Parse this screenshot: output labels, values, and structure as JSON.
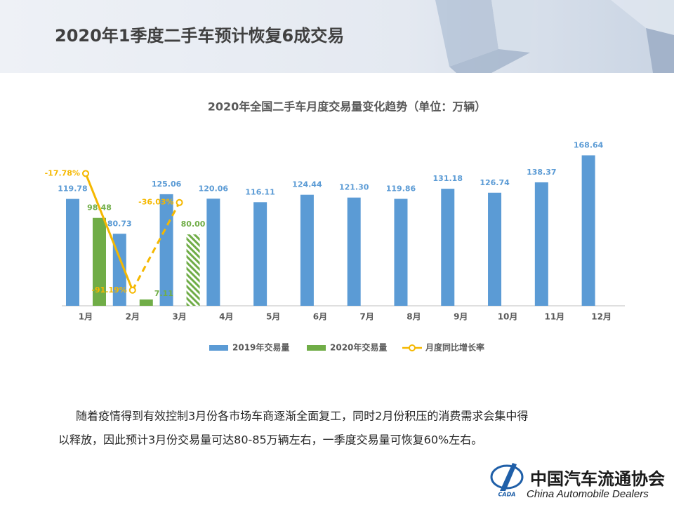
{
  "header": {
    "title": "2020年1季度二手车预计恢复6成交易"
  },
  "chart_data": {
    "type": "bar",
    "title": "2020年全国二手车月度交易量变化趋势（单位：万辆）",
    "categories": [
      "1月",
      "2月",
      "3月",
      "4月",
      "5月",
      "6月",
      "7月",
      "8月",
      "9月",
      "10月",
      "11月",
      "12月"
    ],
    "ylim": [
      0,
      180
    ],
    "y2lim": [
      -101,
      0
    ],
    "series": [
      {
        "name": "2019年交易量",
        "type": "bar",
        "color": "#5b9bd5",
        "values": [
          119.78,
          80.73,
          125.06,
          120.06,
          116.11,
          124.44,
          121.3,
          119.86,
          131.18,
          126.74,
          138.37,
          168.64
        ],
        "value_labels": [
          "119.78",
          "80.73",
          "125.06",
          "120.06",
          "116.11",
          "124.44",
          "121.30",
          "119.86",
          "131.18",
          "126.74",
          "138.37",
          "168.64"
        ]
      },
      {
        "name": "2020年交易量",
        "type": "bar",
        "color": "#70ad47",
        "values": [
          98.48,
          7.11,
          80,
          null,
          null,
          null,
          null,
          null,
          null,
          null,
          null,
          null
        ],
        "value_labels": [
          "98.48",
          "7.11",
          "80.00",
          null,
          null,
          null,
          null,
          null,
          null,
          null,
          null,
          null
        ],
        "hatched": [
          2
        ]
      },
      {
        "name": "月度同比增长率",
        "type": "line",
        "axis": "y2",
        "color": "#f5b800",
        "values": [
          -17.78,
          -91.19,
          -36.03,
          null,
          null,
          null,
          null,
          null,
          null,
          null,
          null,
          null
        ],
        "value_labels": [
          "-17.78%",
          "-91.19%",
          "-36.03%",
          null,
          null,
          null,
          null,
          null,
          null,
          null,
          null,
          null
        ],
        "dashed_segments": [
          1
        ]
      }
    ],
    "legend": "bottom"
  },
  "body": {
    "lines": [
      "随着疫情得到有效控制3月份各市场车商逐渐全面复工，同时2月份积压的消费需求会集中得",
      "以释放，因此预计3月份交易量可达80-85万辆左右，一季度交易量可恢复60%左右。"
    ]
  },
  "footer": {
    "org": "中国汽车流通协会",
    "org_en": "China Automobile Dealers",
    "logo": "CADA"
  }
}
